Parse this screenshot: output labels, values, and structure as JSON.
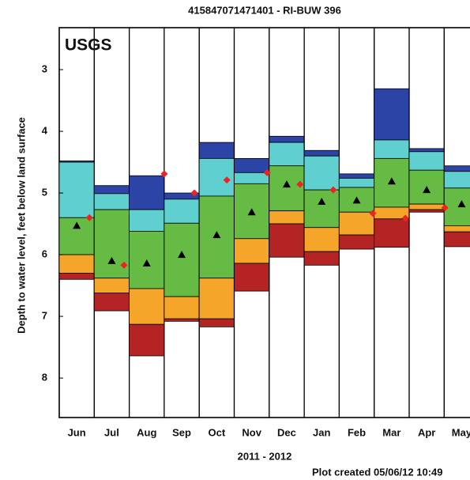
{
  "chart_data": {
    "type": "percentile_bands",
    "title": "415847071471401 - RI-BUW 396",
    "logo": "USGS",
    "y_label": "Depth to water level, feet below land surface",
    "x_label": "2011 - 2012",
    "footer": "Plot created 05/06/12 10:49",
    "categories": [
      "Jun",
      "Jul",
      "Aug",
      "Sep",
      "Oct",
      "Nov",
      "Dec",
      "Jan",
      "Feb",
      "Mar",
      "Apr",
      "May"
    ],
    "xlim": [
      0,
      12
    ],
    "ylim": [
      2.32,
      8.64
    ],
    "y_inverted": true,
    "yticks": [
      3,
      4,
      5,
      6,
      7,
      8
    ],
    "band_colors": [
      "#2b44a6",
      "#5fcfcf",
      "#66bb44",
      "#f4a52a",
      "#b52424"
    ],
    "levels": [
      [
        4.48,
        4.88,
        4.72,
        5.0,
        4.18,
        4.44,
        4.08,
        4.31,
        4.69,
        3.31,
        4.28,
        4.56
      ],
      [
        4.5,
        5.01,
        5.27,
        5.1,
        4.44,
        4.67,
        4.18,
        4.4,
        4.76,
        4.14,
        4.33,
        4.65
      ],
      [
        5.4,
        5.27,
        5.62,
        5.49,
        5.05,
        4.85,
        4.56,
        4.95,
        4.91,
        4.44,
        4.63,
        4.92
      ],
      [
        6.0,
        6.38,
        6.55,
        6.68,
        6.38,
        5.74,
        5.29,
        5.56,
        5.31,
        5.23,
        5.18,
        5.53
      ],
      [
        6.3,
        6.62,
        7.13,
        7.04,
        7.04,
        6.14,
        5.5,
        5.95,
        5.68,
        5.42,
        5.27,
        5.63
      ],
      [
        6.4,
        6.91,
        7.64,
        7.08,
        7.17,
        6.59,
        6.04,
        6.17,
        5.91,
        5.88,
        5.31,
        5.87
      ]
    ],
    "medians": [
      5.53,
      6.1,
      6.14,
      6.0,
      5.68,
      5.31,
      4.86,
      5.14,
      5.12,
      4.81,
      4.95,
      5.18
    ],
    "median_color": "#000000",
    "observed": {
      "color": "#ee2222",
      "x": [
        0.86,
        1.85,
        3.0,
        3.86,
        4.79,
        5.94,
        6.88,
        7.83,
        8.96,
        9.89,
        11.02
      ],
      "values": [
        5.4,
        6.17,
        4.69,
        5.0,
        4.79,
        4.67,
        4.86,
        4.95,
        5.33,
        5.41,
        5.24
      ]
    }
  }
}
